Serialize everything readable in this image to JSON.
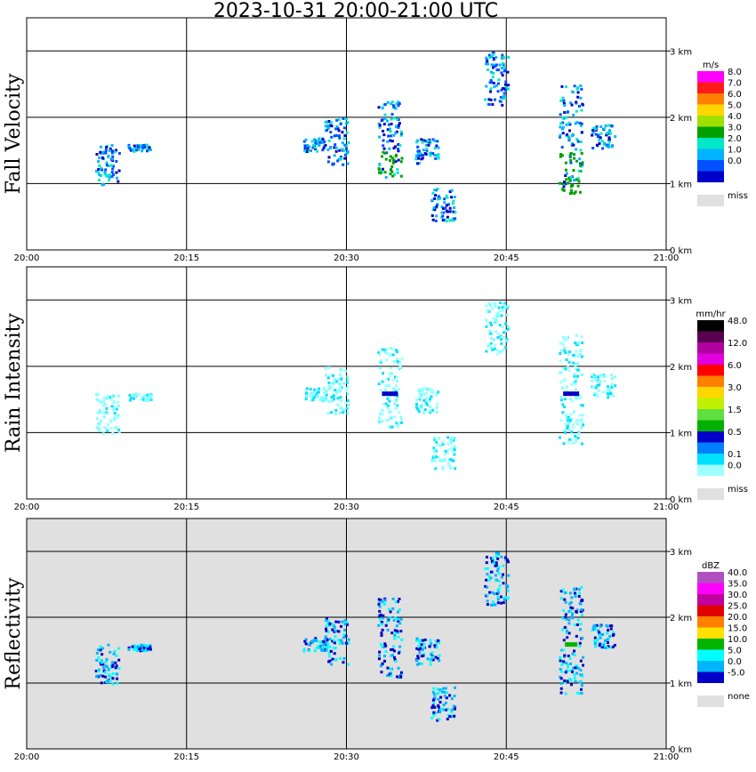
{
  "title": "2023-10-31   20:00-21:00 UTC",
  "x_tick_labels": [
    "20:00",
    "20:15",
    "20:30",
    "20:45",
    "21:00"
  ],
  "height_tick_labels": [
    "0 km",
    "1 km",
    "2 km",
    "3 km"
  ],
  "panels": [
    {
      "ylabel": "Fall Velocity",
      "unit": "m/s",
      "legend": [
        {
          "label": "8.0",
          "color": "#ff00ff"
        },
        {
          "label": "7.0",
          "color": "#ff1a1a"
        },
        {
          "label": "6.0",
          "color": "#ff7f00"
        },
        {
          "label": "5.0",
          "color": "#ffd700"
        },
        {
          "label": "4.0",
          "color": "#a0e000"
        },
        {
          "label": "3.0",
          "color": "#00a000"
        },
        {
          "label": "2.0",
          "color": "#00e8c8"
        },
        {
          "label": "1.0",
          "color": "#00b4ff"
        },
        {
          "label": "0.0",
          "color": "#0050ff"
        },
        {
          "label": "",
          "color": "#0000c8"
        }
      ],
      "missing_label": "miss",
      "background": "#ffffff"
    },
    {
      "ylabel": "Rain Intensity",
      "unit": "mm/hr",
      "legend": [
        {
          "label": "48.0",
          "color": "#000000"
        },
        {
          "label": "",
          "color": "#5a0050"
        },
        {
          "label": "12.0",
          "color": "#b000a0"
        },
        {
          "label": "",
          "color": "#e000e0"
        },
        {
          "label": "6.0",
          "color": "#ff0000"
        },
        {
          "label": "",
          "color": "#ff8000"
        },
        {
          "label": "3.0",
          "color": "#ffd700"
        },
        {
          "label": "",
          "color": "#c0f000"
        },
        {
          "label": "1.5",
          "color": "#60e040"
        },
        {
          "label": "",
          "color": "#00b000"
        },
        {
          "label": "0.5",
          "color": "#0000c8"
        },
        {
          "label": "",
          "color": "#0080ff"
        },
        {
          "label": "0.1",
          "color": "#00e0ff"
        },
        {
          "label": "0.0",
          "color": "#a0ffff"
        }
      ],
      "missing_label": "miss",
      "background": "#ffffff"
    },
    {
      "ylabel": "Reflectivity",
      "unit": "dBZ",
      "legend": [
        {
          "label": "40.0",
          "color": "#b050c0"
        },
        {
          "label": "35.0",
          "color": "#ff00ff"
        },
        {
          "label": "30.0",
          "color": "#c000a0"
        },
        {
          "label": "25.0",
          "color": "#e00000"
        },
        {
          "label": "20.0",
          "color": "#ff8000"
        },
        {
          "label": "15.0",
          "color": "#ffe000"
        },
        {
          "label": "10.0",
          "color": "#00b400"
        },
        {
          "label": "5.0",
          "color": "#00ffff"
        },
        {
          "label": "0.0",
          "color": "#00b4ff"
        },
        {
          "label": "-5.0",
          "color": "#0000c8"
        }
      ],
      "missing_label": "none",
      "background": "#e0e0e0"
    }
  ],
  "chart_data": {
    "type": "heatmap",
    "x_range_utc": [
      "20:00",
      "21:00"
    ],
    "y_range_km": [
      0,
      3.5
    ],
    "grid": true,
    "rain_cells": [
      {
        "time_min": 7.5,
        "top_km": 1.6,
        "bottom_km": 1.0,
        "fall_velocity_m_s": 1.0
      },
      {
        "time_min": 10.5,
        "top_km": 1.6,
        "bottom_km": 1.5,
        "fall_velocity_m_s": 1.0
      },
      {
        "time_min": 27.0,
        "top_km": 1.7,
        "bottom_km": 1.5,
        "fall_velocity_m_s": 1.0
      },
      {
        "time_min": 29.0,
        "top_km": 2.0,
        "bottom_km": 1.3,
        "fall_velocity_m_s": 1.0
      },
      {
        "time_min": 34.0,
        "top_km": 2.3,
        "bottom_km": 1.1,
        "fall_velocity_m_s": 2.5
      },
      {
        "time_min": 37.5,
        "top_km": 1.7,
        "bottom_km": 1.3,
        "fall_velocity_m_s": 1.0
      },
      {
        "time_min": 39.0,
        "top_km": 0.95,
        "bottom_km": 0.45,
        "fall_velocity_m_s": 0.5
      },
      {
        "time_min": 44.0,
        "top_km": 3.0,
        "bottom_km": 2.2,
        "fall_velocity_m_s": 0.5
      },
      {
        "time_min": 51.0,
        "top_km": 2.5,
        "bottom_km": 0.85,
        "fall_velocity_m_s": 3.5
      },
      {
        "time_min": 54.0,
        "top_km": 1.9,
        "bottom_km": 1.55,
        "fall_velocity_m_s": 1.0
      }
    ]
  }
}
